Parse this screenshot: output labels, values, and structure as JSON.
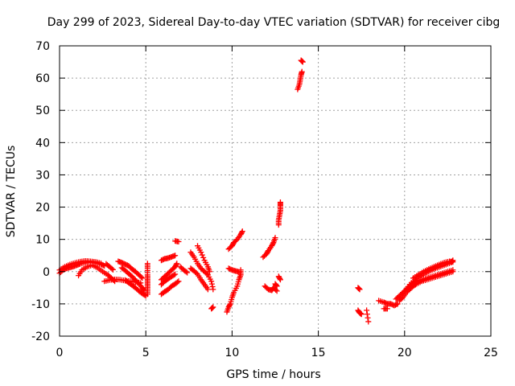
{
  "chart_data": {
    "type": "scatter",
    "title": "Day 299 of 2023, Sidereal Day-to-day VTEC variation (SDTVAR) for receiver cibg",
    "xlabel": "GPS time / hours",
    "ylabel": "SDTVAR / TECUs",
    "xlim": [
      0,
      25
    ],
    "ylim": [
      -20,
      70
    ],
    "grid": true,
    "x_ticks": [
      0,
      5,
      10,
      15,
      20,
      25
    ],
    "y_ticks": [
      -20,
      -10,
      0,
      10,
      20,
      30,
      40,
      50,
      60,
      70
    ],
    "x_tick_labels": [
      "0",
      "5",
      "10",
      "15",
      "20",
      "25"
    ],
    "y_tick_labels": [
      "-20",
      "-10",
      "0",
      "10",
      "20",
      "30",
      "40",
      "50",
      "60",
      "70"
    ],
    "series": [
      {
        "name": "SDTVAR",
        "color": "#ff0000",
        "marker": "plus",
        "tracks": [
          [
            [
              0.0,
              -0.5
            ],
            [
              0.2,
              0.5
            ],
            [
              0.4,
              1.0
            ],
            [
              0.6,
              1.3
            ],
            [
              0.8,
              1.6
            ],
            [
              1.0,
              2.0
            ],
            [
              1.2,
              2.4
            ],
            [
              1.5,
              2.8
            ],
            [
              1.8,
              2.9
            ],
            [
              2.1,
              2.7
            ],
            [
              2.4,
              2.3
            ],
            [
              2.6,
              1.8
            ]
          ],
          [
            [
              0.0,
              0.5
            ],
            [
              0.3,
              1.5
            ],
            [
              0.6,
              2.2
            ],
            [
              0.9,
              2.7
            ],
            [
              1.2,
              3.1
            ],
            [
              1.5,
              3.3
            ],
            [
              1.8,
              3.2
            ],
            [
              2.1,
              3.0
            ],
            [
              2.4,
              2.6
            ]
          ],
          [
            [
              1.1,
              -1.2
            ],
            [
              1.3,
              0.5
            ],
            [
              1.6,
              1.5
            ],
            [
              1.9,
              2.0
            ],
            [
              2.2,
              1.2
            ],
            [
              2.5,
              0.0
            ],
            [
              2.8,
              -1.0
            ],
            [
              3.0,
              -2.0
            ],
            [
              3.2,
              -3.0
            ]
          ],
          [
            [
              2.6,
              -3.0
            ],
            [
              2.9,
              -2.6
            ],
            [
              3.2,
              -2.4
            ],
            [
              3.5,
              -2.5
            ],
            [
              3.8,
              -2.8
            ],
            [
              4.1,
              -3.0
            ],
            [
              4.4,
              -3.2
            ],
            [
              4.7,
              -3.5
            ]
          ],
          [
            [
              2.7,
              2.4
            ],
            [
              2.9,
              1.5
            ],
            [
              3.1,
              0.6
            ]
          ],
          [
            [
              3.4,
              3.2
            ],
            [
              3.6,
              2.8
            ],
            [
              3.8,
              2.3
            ],
            [
              4.0,
              1.8
            ],
            [
              4.2,
              0.8
            ],
            [
              4.4,
              0.0
            ],
            [
              4.6,
              -1.0
            ],
            [
              4.8,
              -2.0
            ]
          ],
          [
            [
              3.6,
              1.2
            ],
            [
              3.8,
              0.4
            ],
            [
              4.0,
              -0.6
            ],
            [
              4.2,
              -1.5
            ],
            [
              4.4,
              -2.6
            ],
            [
              4.6,
              -3.8
            ],
            [
              4.8,
              -5.0
            ],
            [
              4.9,
              -6.0
            ]
          ],
          [
            [
              3.8,
              -2.6
            ],
            [
              4.0,
              -3.4
            ],
            [
              4.2,
              -4.2
            ],
            [
              4.4,
              -5.0
            ],
            [
              4.6,
              -6.0
            ],
            [
              4.8,
              -6.8
            ],
            [
              5.0,
              -7.5
            ]
          ],
          [
            [
              5.1,
              2.5
            ],
            [
              5.1,
              1.0
            ],
            [
              5.1,
              -1.0
            ],
            [
              5.1,
              -2.5
            ],
            [
              5.1,
              -4.0
            ],
            [
              5.1,
              -5.5
            ],
            [
              5.1,
              -7.0
            ]
          ],
          [
            [
              5.9,
              3.5
            ],
            [
              6.1,
              4.0
            ],
            [
              6.3,
              4.2
            ],
            [
              6.5,
              4.6
            ],
            [
              6.7,
              5.0
            ]
          ],
          [
            [
              5.9,
              -2.5
            ],
            [
              6.1,
              -1.5
            ],
            [
              6.3,
              -0.5
            ],
            [
              6.5,
              0.5
            ],
            [
              6.7,
              1.5
            ],
            [
              6.8,
              2.5
            ]
          ],
          [
            [
              5.9,
              -4.0
            ],
            [
              6.1,
              -3.0
            ],
            [
              6.3,
              -2.2
            ],
            [
              6.5,
              -1.5
            ],
            [
              6.7,
              -0.8
            ]
          ],
          [
            [
              5.9,
              -7.0
            ],
            [
              6.1,
              -6.2
            ],
            [
              6.3,
              -5.5
            ],
            [
              6.5,
              -4.5
            ],
            [
              6.7,
              -3.8
            ],
            [
              6.9,
              -3.0
            ]
          ],
          [
            [
              6.7,
              9.5
            ],
            [
              6.9,
              9.3
            ]
          ],
          [
            [
              7.0,
              1.5
            ],
            [
              7.2,
              0.5
            ],
            [
              7.4,
              -0.3
            ]
          ],
          [
            [
              7.6,
              6.0
            ],
            [
              7.8,
              4.5
            ],
            [
              8.0,
              2.5
            ],
            [
              8.2,
              1.0
            ],
            [
              8.4,
              0.0
            ],
            [
              8.6,
              -1.0
            ],
            [
              8.8,
              -3.0
            ],
            [
              8.9,
              -5.5
            ]
          ],
          [
            [
              7.6,
              1.0
            ],
            [
              7.8,
              0.2
            ],
            [
              8.0,
              -0.8
            ],
            [
              8.2,
              -2.5
            ],
            [
              8.4,
              -4.0
            ],
            [
              8.6,
              -5.5
            ]
          ],
          [
            [
              8.0,
              8.0
            ],
            [
              8.2,
              6.0
            ],
            [
              8.4,
              3.5
            ],
            [
              8.6,
              1.5
            ],
            [
              8.7,
              0.0
            ]
          ],
          [
            [
              8.8,
              -11.5
            ],
            [
              8.9,
              -11.0
            ]
          ],
          [
            [
              9.7,
              -12.5
            ],
            [
              9.8,
              -11.0
            ],
            [
              9.9,
              -10.0
            ],
            [
              10.0,
              -8.0
            ],
            [
              10.1,
              -6.5
            ],
            [
              10.3,
              -4.5
            ],
            [
              10.4,
              -2.5
            ],
            [
              10.5,
              -1.0
            ],
            [
              10.5,
              0.5
            ]
          ],
          [
            [
              9.8,
              1.0
            ],
            [
              10.0,
              0.5
            ],
            [
              10.2,
              0.2
            ],
            [
              10.4,
              -0.1
            ]
          ],
          [
            [
              9.8,
              7.0
            ],
            [
              10.0,
              8.0
            ],
            [
              10.1,
              9.0
            ],
            [
              10.3,
              10.0
            ],
            [
              10.5,
              11.5
            ],
            [
              10.6,
              12.5
            ]
          ],
          [
            [
              11.8,
              4.5
            ],
            [
              12.0,
              5.5
            ],
            [
              12.1,
              6.5
            ],
            [
              12.3,
              8.0
            ],
            [
              12.4,
              9.0
            ],
            [
              12.5,
              10.5
            ]
          ],
          [
            [
              11.9,
              -4.5
            ],
            [
              12.1,
              -5.5
            ],
            [
              12.3,
              -5.8
            ],
            [
              12.4,
              -5.0
            ],
            [
              12.6,
              -6.0
            ]
          ],
          [
            [
              12.5,
              -3.8
            ],
            [
              12.6,
              -4.5
            ]
          ],
          [
            [
              12.7,
              14.5
            ],
            [
              12.7,
              16.0
            ],
            [
              12.75,
              17.5
            ],
            [
              12.8,
              19.0
            ],
            [
              12.8,
              20.5
            ],
            [
              12.8,
              21.5
            ]
          ],
          [
            [
              12.7,
              -1.5
            ],
            [
              12.8,
              -2.5
            ]
          ],
          [
            [
              13.8,
              56.5
            ],
            [
              13.9,
              58.0
            ],
            [
              13.95,
              59.5
            ],
            [
              14.0,
              61.0
            ],
            [
              14.05,
              62.0
            ]
          ],
          [
            [
              14.0,
              65.5
            ],
            [
              14.1,
              65.0
            ]
          ],
          [
            [
              17.3,
              -5.0
            ],
            [
              17.4,
              -5.5
            ]
          ],
          [
            [
              17.3,
              -12.0
            ],
            [
              17.4,
              -12.8
            ],
            [
              17.5,
              -13.2
            ]
          ],
          [
            [
              17.8,
              -12.0
            ],
            [
              17.9,
              -15.5
            ]
          ],
          [
            [
              18.5,
              -9.0
            ],
            [
              18.8,
              -9.5
            ],
            [
              19.0,
              -10.0
            ],
            [
              19.2,
              -10.0
            ],
            [
              19.4,
              -10.5
            ],
            [
              19.6,
              -10.0
            ]
          ],
          [
            [
              18.8,
              -11.5
            ],
            [
              19.0,
              -11.5
            ]
          ],
          [
            [
              19.5,
              -8.5
            ],
            [
              19.7,
              -7.5
            ],
            [
              19.9,
              -6.5
            ],
            [
              20.1,
              -5.5
            ],
            [
              20.3,
              -4.5
            ],
            [
              20.5,
              -3.5
            ],
            [
              20.7,
              -3.0
            ],
            [
              21.0,
              -2.5
            ],
            [
              21.3,
              -2.0
            ],
            [
              21.6,
              -1.5
            ],
            [
              21.9,
              -1.0
            ],
            [
              22.2,
              -0.5
            ],
            [
              22.5,
              0.0
            ],
            [
              22.8,
              0.5
            ]
          ],
          [
            [
              19.7,
              -9.0
            ],
            [
              19.9,
              -8.0
            ],
            [
              20.1,
              -6.5
            ],
            [
              20.3,
              -5.5
            ],
            [
              20.5,
              -4.5
            ],
            [
              20.7,
              -3.8
            ],
            [
              21.0,
              -3.0
            ],
            [
              21.3,
              -2.5
            ],
            [
              21.6,
              -2.0
            ],
            [
              21.9,
              -1.5
            ],
            [
              22.2,
              -1.0
            ],
            [
              22.5,
              -0.5
            ],
            [
              22.8,
              0.0
            ]
          ],
          [
            [
              20.0,
              -6.0
            ],
            [
              20.3,
              -4.0
            ],
            [
              20.6,
              -2.5
            ],
            [
              20.9,
              -1.5
            ],
            [
              21.2,
              -0.5
            ],
            [
              21.5,
              0.3
            ],
            [
              21.8,
              1.0
            ],
            [
              22.1,
              1.6
            ],
            [
              22.4,
              2.2
            ],
            [
              22.7,
              2.8
            ],
            [
              22.8,
              3.5
            ]
          ],
          [
            [
              20.5,
              -2.0
            ],
            [
              20.8,
              -1.0
            ],
            [
              21.1,
              0.0
            ],
            [
              21.4,
              0.8
            ],
            [
              21.7,
              1.5
            ],
            [
              22.0,
              2.2
            ],
            [
              22.3,
              2.8
            ],
            [
              22.6,
              3.2
            ],
            [
              22.8,
              3.0
            ]
          ]
        ]
      }
    ]
  }
}
